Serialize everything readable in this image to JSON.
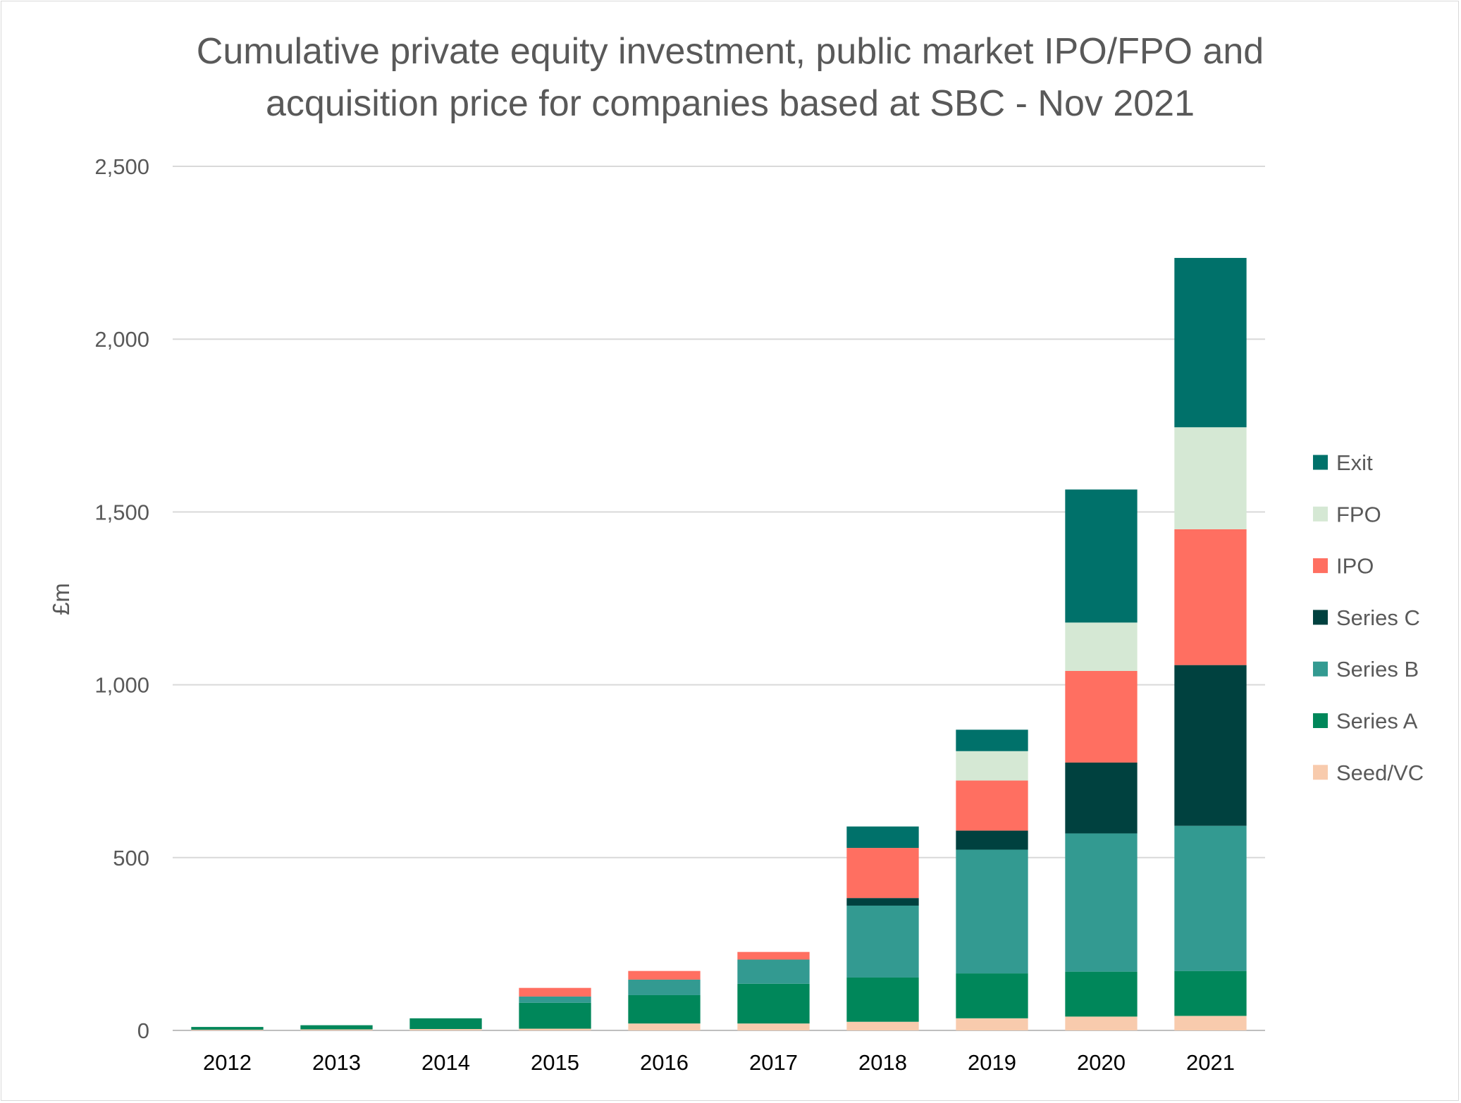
{
  "chart_data": {
    "type": "bar",
    "stacked": true,
    "title": "Cumulative private equity investment, public market IPO/FPO and acquisition price for companies based at SBC - Nov 2021",
    "title_lines": [
      "Cumulative private equity investment, public market IPO/FPO and",
      "acquisition price for companies based at SBC - Nov 2021"
    ],
    "xlabel": "",
    "ylabel": "£m",
    "ylim": [
      0,
      2500
    ],
    "yticks": [
      0,
      500,
      1000,
      1500,
      2000,
      2500
    ],
    "ytick_labels": [
      "0",
      "500",
      "1,000",
      "1,500",
      "2,000",
      "2,500"
    ],
    "grid": true,
    "legend_position": "right",
    "categories": [
      "2012",
      "2013",
      "2014",
      "2015",
      "2016",
      "2017",
      "2018",
      "2019",
      "2020",
      "2021"
    ],
    "series": [
      {
        "name": "Seed/VC",
        "color": "#F8CBAD",
        "values": [
          2,
          3,
          4,
          5,
          20,
          20,
          25,
          35,
          40,
          42
        ]
      },
      {
        "name": "Series A",
        "color": "#00875A",
        "values": [
          8,
          12,
          31,
          75,
          82,
          115,
          128,
          130,
          130,
          130
        ]
      },
      {
        "name": "Series B",
        "color": "#339A91",
        "values": [
          0,
          0,
          0,
          18,
          45,
          70,
          208,
          358,
          400,
          420
        ]
      },
      {
        "name": "Series C",
        "color": "#00413F",
        "values": [
          0,
          0,
          0,
          0,
          0,
          0,
          22,
          55,
          205,
          465
        ]
      },
      {
        "name": "IPO",
        "color": "#FF6F61",
        "values": [
          0,
          0,
          0,
          25,
          25,
          22,
          145,
          145,
          265,
          393
        ]
      },
      {
        "name": "FPO",
        "color": "#D5E8D4",
        "values": [
          0,
          0,
          0,
          0,
          0,
          0,
          0,
          85,
          140,
          295
        ]
      },
      {
        "name": "Exit",
        "color": "#00716A",
        "values": [
          0,
          0,
          0,
          0,
          0,
          0,
          62,
          62,
          385,
          490
        ]
      }
    ],
    "legend_order": [
      "Exit",
      "FPO",
      "IPO",
      "Series C",
      "Series B",
      "Series A",
      "Seed/VC"
    ]
  }
}
